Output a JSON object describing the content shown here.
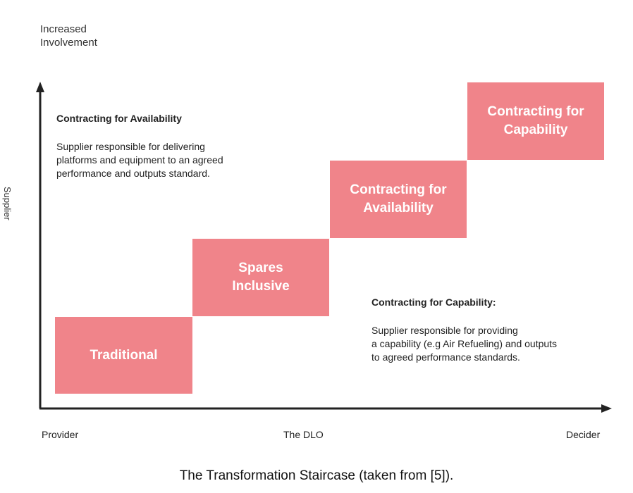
{
  "y_axis": {
    "title": "Increased\nInvolvement",
    "label": "Supplier"
  },
  "x_axis": {
    "ticks": [
      "Provider",
      "The DLO",
      "Decider"
    ]
  },
  "steps": [
    {
      "label": "Traditional"
    },
    {
      "label": "Spares\nInclusive"
    },
    {
      "label": "Contracting for\nAvailability"
    },
    {
      "label": "Contracting for\nCapability"
    }
  ],
  "notes": {
    "availability": {
      "title": "Contracting for Availability",
      "body": "Supplier responsible for delivering\nplatforms and equipment to an agreed\nperformance and outputs standard."
    },
    "capability": {
      "title": "Contracting for Capability:",
      "body": "Supplier responsible for providing\na capability (e.g Air Refueling) and outputs\nto agreed performance standards."
    }
  },
  "caption": "The Transformation Staircase (taken from [5]).",
  "colors": {
    "step_fill": "#f0848a",
    "step_text": "#ffffff",
    "axis": "#222222"
  }
}
